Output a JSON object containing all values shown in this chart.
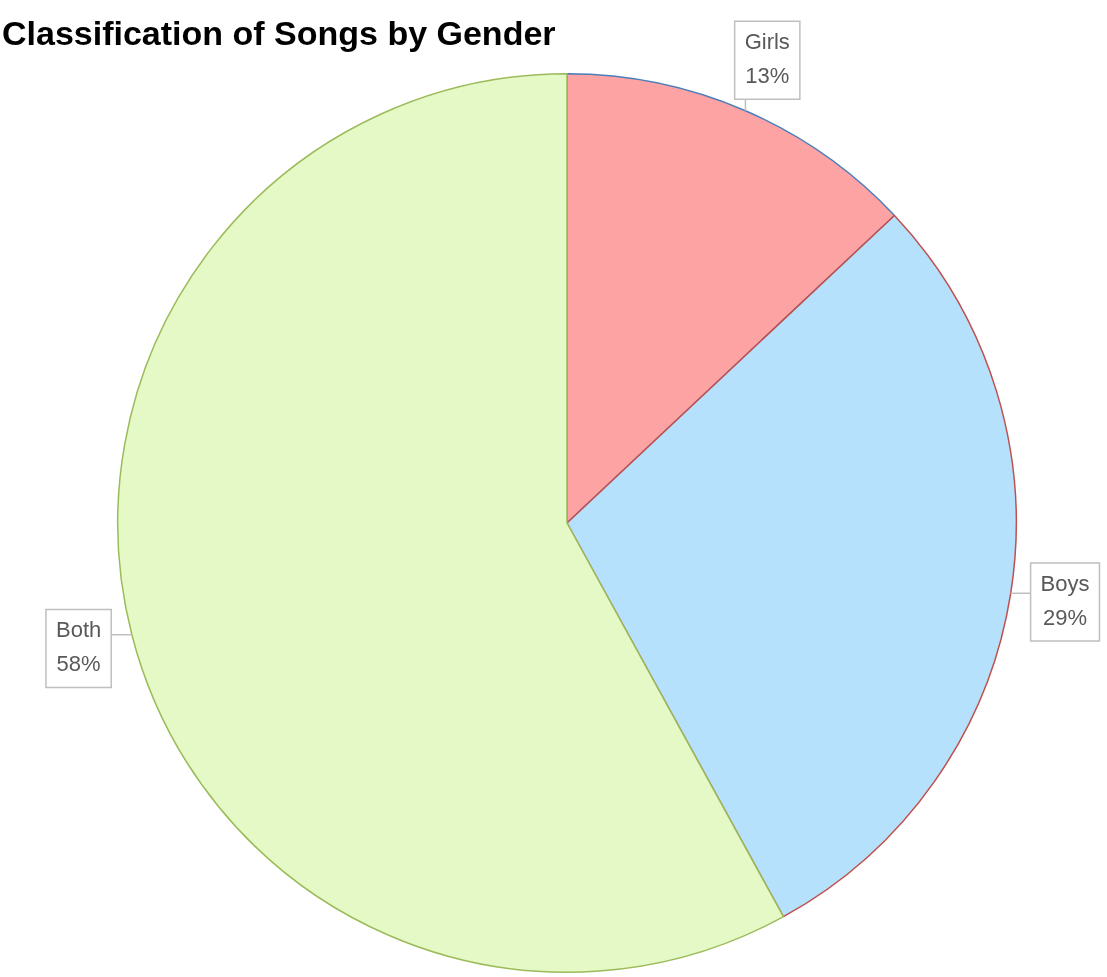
{
  "chart_data": {
    "type": "pie",
    "title": "Classification of Songs by Gender",
    "categories": [
      "Girls",
      "Boys",
      "Both"
    ],
    "values": [
      13,
      29,
      58
    ],
    "colors": [
      "#fda3a3",
      "#b5e1fd",
      "#e4f9c6"
    ],
    "value_labels": [
      "13%",
      "29%",
      "58%"
    ],
    "legend": false
  }
}
